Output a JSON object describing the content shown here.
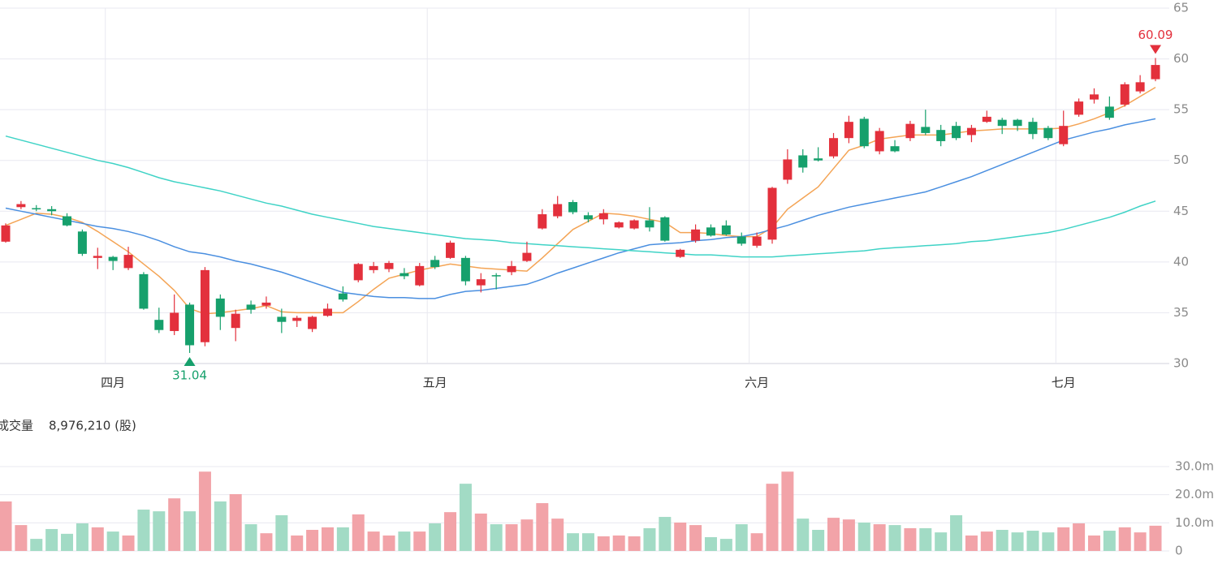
{
  "chart_data": {
    "type": "candlestick",
    "categories": [
      null,
      null,
      null,
      null,
      null,
      null,
      null,
      "四月",
      null,
      null,
      null,
      null,
      null,
      null,
      null,
      null,
      null,
      null,
      null,
      null,
      null,
      null,
      null,
      null,
      null,
      null,
      null,
      null,
      "五月",
      null,
      null,
      null,
      null,
      null,
      null,
      null,
      null,
      null,
      null,
      null,
      null,
      null,
      null,
      null,
      null,
      null,
      null,
      null,
      null,
      "六月",
      null,
      null,
      null,
      null,
      null,
      null,
      null,
      null,
      null,
      null,
      null,
      null,
      null,
      null,
      null,
      null,
      null,
      null,
      null,
      "七月",
      null,
      null,
      null,
      null,
      null,
      null
    ],
    "open": [
      42.0,
      45.4,
      45.3,
      45.2,
      44.5,
      43.0,
      40.4,
      40.5,
      39.4,
      38.8,
      34.3,
      33.2,
      35.8,
      32.1,
      36.4,
      33.5,
      35.8,
      35.7,
      34.6,
      34.2,
      33.4,
      34.7,
      36.9,
      38.2,
      39.2,
      39.3,
      38.9,
      37.7,
      40.2,
      40.4,
      40.4,
      37.7,
      38.7,
      39.0,
      40.1,
      43.3,
      44.5,
      45.9,
      44.6,
      44.2,
      43.4,
      43.3,
      44.1,
      44.4,
      40.5,
      42.1,
      43.4,
      43.6,
      42.5,
      41.6,
      42.2,
      48.1,
      50.5,
      50.2,
      50.4,
      52.2,
      54.1,
      50.9,
      51.4,
      52.2,
      53.3,
      53.0,
      53.4,
      52.5,
      53.8,
      54.0,
      54.0,
      53.8,
      53.2,
      51.6,
      54.5,
      56.0,
      55.3,
      55.5,
      56.8,
      58.0
    ],
    "high": [
      43.8,
      46.0,
      45.6,
      45.5,
      44.8,
      43.2,
      41.4,
      40.6,
      41.5,
      39.0,
      35.5,
      36.8,
      36.0,
      39.5,
      36.8,
      35.3,
      36.2,
      36.6,
      35.4,
      34.7,
      34.7,
      35.9,
      37.6,
      39.9,
      40.0,
      40.1,
      39.4,
      39.9,
      40.6,
      42.1,
      40.6,
      38.9,
      38.9,
      40.1,
      42.0,
      45.2,
      46.5,
      46.1,
      44.9,
      45.2,
      44.0,
      44.2,
      45.4,
      44.5,
      41.3,
      43.7,
      43.7,
      44.1,
      42.9,
      42.9,
      47.4,
      51.1,
      51.1,
      51.3,
      52.7,
      54.4,
      54.3,
      53.2,
      52.0,
      53.9,
      55.0,
      53.5,
      53.8,
      53.5,
      54.9,
      54.2,
      54.1,
      54.2,
      53.4,
      54.9,
      56.1,
      57.1,
      56.3,
      57.7,
      58.4,
      60.09
    ],
    "low": [
      41.9,
      45.2,
      45.0,
      44.6,
      43.5,
      40.6,
      39.3,
      39.2,
      39.2,
      35.3,
      33.0,
      32.8,
      31.04,
      31.7,
      33.3,
      32.2,
      34.9,
      35.4,
      33.0,
      33.6,
      33.1,
      34.6,
      36.1,
      38.0,
      38.9,
      39.0,
      38.3,
      37.6,
      39.3,
      40.3,
      37.7,
      37.0,
      37.3,
      38.7,
      40.0,
      43.2,
      44.3,
      44.7,
      43.9,
      43.7,
      43.3,
      43.2,
      43.0,
      42.0,
      40.4,
      41.9,
      42.5,
      42.6,
      41.6,
      41.4,
      41.8,
      47.7,
      48.8,
      49.9,
      50.2,
      51.7,
      51.2,
      50.6,
      50.8,
      51.9,
      52.5,
      51.4,
      52.0,
      51.8,
      53.7,
      52.6,
      52.9,
      52.1,
      52.0,
      51.4,
      54.3,
      55.6,
      54.0,
      55.3,
      56.6,
      57.8
    ],
    "close": [
      43.6,
      45.7,
      45.2,
      45.0,
      43.6,
      40.8,
      40.6,
      40.1,
      40.7,
      35.4,
      33.3,
      35.0,
      31.8,
      39.2,
      34.6,
      34.9,
      35.3,
      36.0,
      34.1,
      34.5,
      34.6,
      35.4,
      36.3,
      39.8,
      39.6,
      39.9,
      38.6,
      39.6,
      39.5,
      41.9,
      38.1,
      38.3,
      38.6,
      39.6,
      40.9,
      44.7,
      45.7,
      44.9,
      44.2,
      44.8,
      43.9,
      44.1,
      43.4,
      42.1,
      41.2,
      43.2,
      42.6,
      42.7,
      41.8,
      42.5,
      47.3,
      50.1,
      49.3,
      50.0,
      52.2,
      53.8,
      51.4,
      52.9,
      50.9,
      53.6,
      52.7,
      51.9,
      52.2,
      53.2,
      54.3,
      53.4,
      53.4,
      52.6,
      52.2,
      53.4,
      55.8,
      56.5,
      54.2,
      57.5,
      57.7,
      59.4
    ],
    "up_color": "#e3303c",
    "down_color": "#16a06c",
    "lines": [
      {
        "color": "#f4a455",
        "values": [
          43.6,
          44.2,
          44.8,
          44.7,
          44.4,
          43.9,
          43.0,
          42.0,
          41.0,
          39.8,
          38.6,
          37.2,
          35.4,
          34.9,
          35.0,
          35.2,
          35.4,
          35.7,
          35.1,
          35.0,
          35.0,
          35.0,
          35.0,
          36.1,
          37.3,
          38.4,
          38.8,
          39.2,
          39.5,
          39.8,
          39.6,
          39.4,
          39.3,
          39.2,
          39.1,
          40.4,
          41.8,
          43.2,
          44.0,
          44.8,
          44.7,
          44.5,
          44.2,
          43.9,
          42.9,
          42.9,
          42.8,
          42.6,
          42.5,
          42.5,
          43.4,
          45.2,
          46.3,
          47.4,
          49.2,
          51.0,
          51.5,
          52.1,
          52.3,
          52.5,
          52.5,
          52.5,
          52.7,
          52.9,
          53.0,
          53.1,
          53.1,
          53.1,
          53.1,
          53.2,
          53.6,
          54.1,
          54.7,
          55.4,
          56.3,
          57.2
        ]
      },
      {
        "color": "#4a8fe0",
        "values": [
          45.3,
          45.0,
          44.7,
          44.4,
          44.1,
          43.8,
          43.5,
          43.3,
          43.0,
          42.6,
          42.1,
          41.5,
          41.0,
          40.8,
          40.5,
          40.1,
          39.8,
          39.4,
          39.0,
          38.5,
          38.0,
          37.5,
          37.0,
          36.8,
          36.6,
          36.5,
          36.5,
          36.4,
          36.4,
          36.8,
          37.1,
          37.2,
          37.4,
          37.6,
          37.8,
          38.3,
          38.9,
          39.4,
          39.9,
          40.4,
          40.9,
          41.3,
          41.7,
          41.8,
          41.9,
          42.1,
          42.2,
          42.4,
          42.5,
          42.8,
          43.2,
          43.6,
          44.1,
          44.6,
          45.0,
          45.4,
          45.7,
          46.0,
          46.3,
          46.6,
          46.9,
          47.4,
          47.9,
          48.4,
          49.0,
          49.6,
          50.2,
          50.8,
          51.4,
          52.0,
          52.4,
          52.8,
          53.1,
          53.5,
          53.8,
          54.1
        ]
      },
      {
        "color": "#3fd3c6",
        "values": [
          52.4,
          52.0,
          51.6,
          51.2,
          50.8,
          50.4,
          50.0,
          49.7,
          49.3,
          48.8,
          48.3,
          47.9,
          47.6,
          47.3,
          47.0,
          46.6,
          46.2,
          45.8,
          45.5,
          45.1,
          44.7,
          44.4,
          44.1,
          43.8,
          43.5,
          43.3,
          43.1,
          42.9,
          42.7,
          42.5,
          42.3,
          42.2,
          42.1,
          41.9,
          41.8,
          41.7,
          41.6,
          41.5,
          41.4,
          41.3,
          41.2,
          41.1,
          41.0,
          40.9,
          40.8,
          40.7,
          40.7,
          40.6,
          40.5,
          40.5,
          40.5,
          40.6,
          40.7,
          40.8,
          40.9,
          41.0,
          41.1,
          41.3,
          41.4,
          41.5,
          41.6,
          41.7,
          41.8,
          42.0,
          42.1,
          42.3,
          42.5,
          42.7,
          42.9,
          43.2,
          43.6,
          44.0,
          44.4,
          44.9,
          45.5,
          46.0
        ]
      }
    ],
    "ylim": [
      30,
      65
    ],
    "yticks": [
      30,
      35,
      40,
      45,
      50,
      55,
      60,
      65
    ],
    "grid": true,
    "volume": {
      "title": "成交量",
      "subtitle": "8,976,210 (股)",
      "up_color": "#f2a3a8",
      "down_color": "#a2dbc5",
      "values": [
        17.6,
        9.2,
        4.3,
        7.8,
        6.1,
        9.8,
        8.4,
        6.9,
        5.5,
        14.7,
        14.1,
        18.7,
        14.1,
        28.2,
        17.6,
        20.2,
        9.5,
        6.3,
        12.7,
        5.5,
        7.5,
        8.4,
        8.4,
        13.0,
        6.9,
        5.5,
        6.9,
        6.9,
        9.8,
        13.8,
        23.9,
        13.3,
        9.5,
        9.5,
        11.2,
        17.0,
        11.5,
        6.3,
        6.3,
        5.2,
        5.5,
        5.2,
        8.1,
        12.1,
        10.1,
        9.2,
        4.9,
        4.3,
        9.5,
        6.3,
        23.9,
        28.2,
        11.5,
        7.5,
        11.8,
        11.2,
        10.1,
        9.5,
        9.2,
        8.1,
        8.1,
        6.6,
        12.7,
        5.5,
        6.9,
        7.5,
        6.6,
        7.2,
        6.6,
        8.4,
        9.8,
        5.5,
        7.2,
        8.4,
        6.6,
        8.97621
      ],
      "ylim": [
        0,
        30
      ],
      "yticks": [
        0,
        {
          "value": 10,
          "label": "10.0m"
        },
        {
          "value": 20,
          "label": "20.0m"
        },
        {
          "value": 30,
          "label": "30.0m"
        }
      ]
    }
  }
}
